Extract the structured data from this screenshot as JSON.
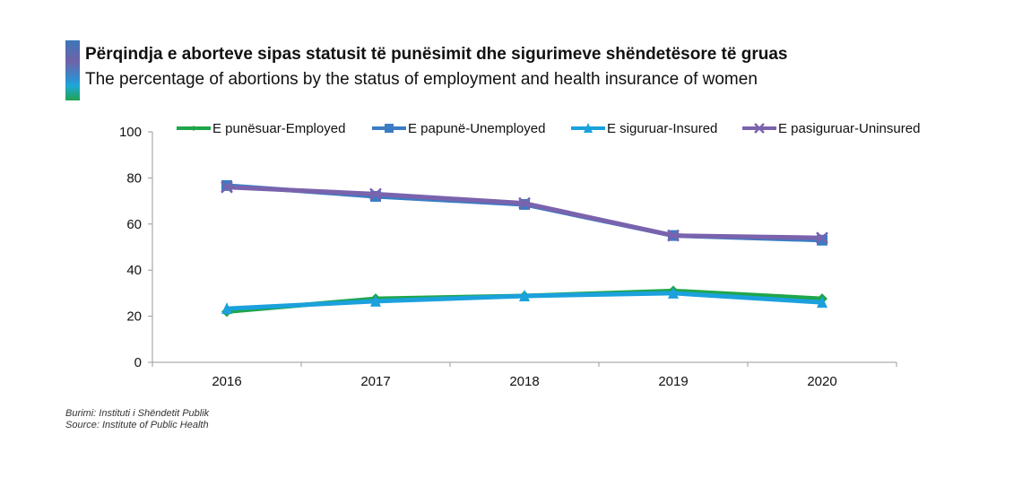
{
  "header": {
    "title_sq": "Përqindja e aborteve sipas statusit të punësimit dhe sigurimeve shëndetësore të gruas",
    "title_en": "The percentage of abortions by the status of employment and health insurance of women"
  },
  "footer": {
    "source_sq": "Burimi: Instituti i Shëndetit Publik",
    "source_en": "Source: Institute of Public Health"
  },
  "chart_data": {
    "type": "line",
    "title": "Përqindja e aborteve sipas statusit të punësimit dhe sigurimeve shëndetësore të gruas",
    "subtitle": "The percentage of abortions by the status of employment and health insurance of women",
    "xlabel": "",
    "ylabel": "",
    "x": [
      "2016",
      "2017",
      "2018",
      "2019",
      "2020"
    ],
    "ylim": [
      0,
      100
    ],
    "yticks": [
      0,
      20,
      40,
      60,
      80,
      100
    ],
    "grid": false,
    "legend_position": "top",
    "series": [
      {
        "name": "E punësuar-Employed",
        "color": "#1fa64a",
        "marker": "diamond",
        "values": [
          22,
          27.6,
          28.8,
          31,
          27.6
        ]
      },
      {
        "name": "E papunë-Unemployed",
        "color": "#3b7cc4",
        "marker": "square",
        "values": [
          76.7,
          72,
          68.5,
          55,
          53
        ]
      },
      {
        "name": "E siguruar-Insured",
        "color": "#1ba1dc",
        "marker": "triangle",
        "values": [
          23.3,
          26.5,
          28.8,
          30,
          26
        ]
      },
      {
        "name": "E pasiguruar-Uninsured",
        "color": "#7a63ad",
        "marker": "x",
        "values": [
          76,
          73,
          69,
          55,
          54
        ]
      }
    ]
  }
}
